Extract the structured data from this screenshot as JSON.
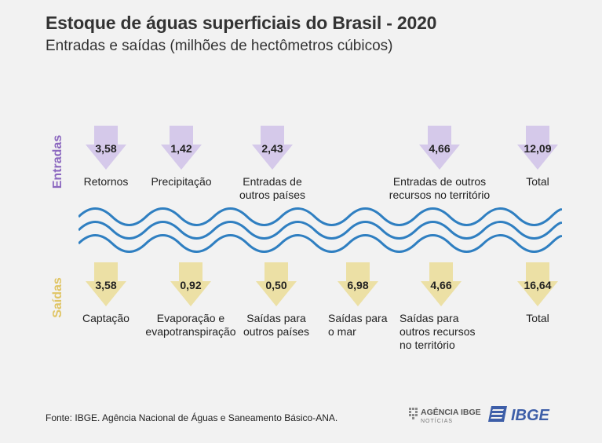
{
  "title": "Estoque de águas superficiais do Brasil - 2020",
  "subtitle": "Entradas e saídas (milhões de hectômetros cúbicos)",
  "entradas": {
    "label": "Entradas",
    "color": "#d5c9ea",
    "items": [
      {
        "value": "3,58",
        "line1": "Retornos",
        "line2": "",
        "line3": ""
      },
      {
        "value": "1,42",
        "line1": "Precipitação",
        "line2": "",
        "line3": ""
      },
      {
        "value": "2,43",
        "line1": "Entradas de",
        "line2": "outros países",
        "line3": ""
      },
      {
        "value": "4,66",
        "line1": "Entradas de outros",
        "line2": "recursos no território",
        "line3": ""
      },
      {
        "value": "12,09",
        "line1": "Total",
        "line2": "",
        "line3": ""
      }
    ]
  },
  "saidas": {
    "label": "Saídas",
    "color": "#ece0a5",
    "items": [
      {
        "value": "3,58",
        "line1": "Captação",
        "line2": "",
        "line3": ""
      },
      {
        "value": "0,92",
        "line1": "Evaporação e",
        "line2": "evapotranspiração",
        "line3": ""
      },
      {
        "value": "0,50",
        "line1": "Saídas para",
        "line2": "outros países",
        "line3": ""
      },
      {
        "value": "6,98",
        "line1": "Saídas para",
        "line2": "o mar",
        "line3": ""
      },
      {
        "value": "4,66",
        "line1": "Saídas para",
        "line2": "outros recursos",
        "line3": "no território"
      },
      {
        "value": "16,64",
        "line1": "Total",
        "line2": "",
        "line3": ""
      }
    ]
  },
  "wave_color": "#2f7fc1",
  "footer": "Fonte: IBGE. Agência Nacional de Águas e Saneamento Básico-ANA.",
  "logos": {
    "agencia_main": "AGÊNCIA IBGE",
    "agencia_sub": "NOTÍCIAS",
    "ibge": "IBGE"
  }
}
